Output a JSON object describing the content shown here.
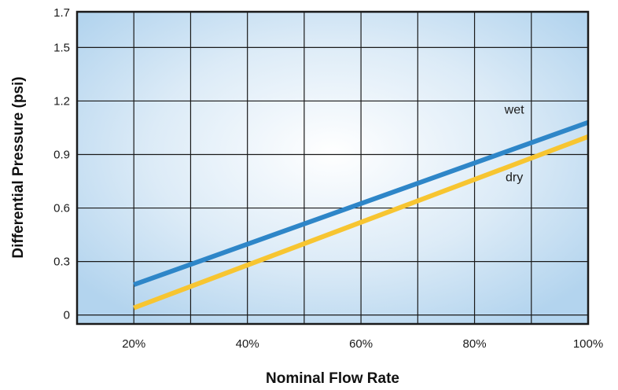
{
  "chart_data": {
    "type": "line",
    "title": "",
    "xlabel": "Nominal Flow Rate",
    "ylabel": "Differential Pressure (psi)",
    "x_ticks": [
      20,
      40,
      60,
      80,
      100
    ],
    "x_tick_labels": [
      "20%",
      "40%",
      "60%",
      "80%",
      "100%"
    ],
    "y_ticks": [
      0,
      0.3,
      0.6,
      0.9,
      1.2,
      1.5,
      1.7
    ],
    "y_tick_labels": [
      "0",
      "0.3",
      "0.6",
      "0.9",
      "1.2",
      "1.5",
      "1.7"
    ],
    "xlim": [
      10,
      100
    ],
    "ylim": [
      -0.05,
      1.7
    ],
    "grid": true,
    "series": [
      {
        "name": "wet",
        "color": "#2e86c8",
        "x": [
          20,
          100
        ],
        "y": [
          0.17,
          1.08
        ],
        "label_at": [
          87,
          1.13
        ]
      },
      {
        "name": "dry",
        "color": "#f7c531",
        "x": [
          20,
          100
        ],
        "y": [
          0.04,
          1.0
        ],
        "label_at": [
          87,
          0.75
        ]
      }
    ]
  }
}
